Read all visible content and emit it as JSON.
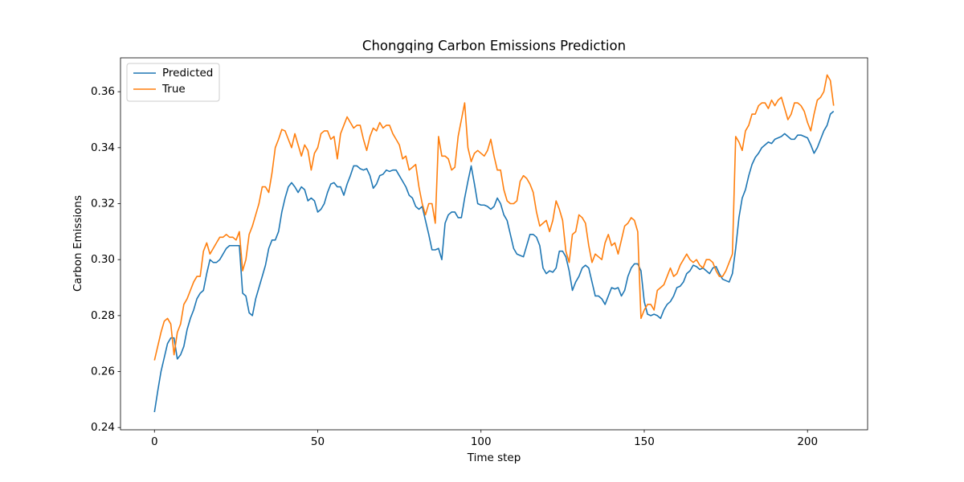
{
  "chart_data": {
    "type": "line",
    "title": "Chongqing Carbon Emissions Prediction",
    "xlabel": "Time step",
    "ylabel": "Carbon Emissions",
    "x": [
      0,
      1,
      2,
      3,
      4,
      5,
      6,
      7,
      8,
      9,
      10,
      11,
      12,
      13,
      14,
      15,
      16,
      17,
      18,
      19,
      20,
      21,
      22,
      23,
      24,
      25,
      26,
      27,
      28,
      29,
      30,
      31,
      32,
      33,
      34,
      35,
      36,
      37,
      38,
      39,
      40,
      41,
      42,
      43,
      44,
      45,
      46,
      47,
      48,
      49,
      50,
      51,
      52,
      53,
      54,
      55,
      56,
      57,
      58,
      59,
      60,
      61,
      62,
      63,
      64,
      65,
      66,
      67,
      68,
      69,
      70,
      71,
      72,
      73,
      74,
      75,
      76,
      77,
      78,
      79,
      80,
      81,
      82,
      83,
      84,
      85,
      86,
      87,
      88,
      89,
      90,
      91,
      92,
      93,
      94,
      95,
      96,
      97,
      98,
      99,
      100,
      101,
      102,
      103,
      104,
      105,
      106,
      107,
      108,
      109,
      110,
      111,
      112,
      113,
      114,
      115,
      116,
      117,
      118,
      119,
      120,
      121,
      122,
      123,
      124,
      125,
      126,
      127,
      128,
      129,
      130,
      131,
      132,
      133,
      134,
      135,
      136,
      137,
      138,
      139,
      140,
      141,
      142,
      143,
      144,
      145,
      146,
      147,
      148,
      149,
      150,
      151,
      152,
      153,
      154,
      155,
      156,
      157,
      158,
      159,
      160,
      161,
      162,
      163,
      164,
      165,
      166,
      167,
      168,
      169,
      170,
      171,
      172,
      173,
      174,
      175,
      176,
      177,
      178,
      179,
      180,
      181,
      182,
      183,
      184,
      185,
      186,
      187,
      188,
      189,
      190,
      191,
      192,
      193,
      194,
      195,
      196,
      197,
      198,
      199,
      200,
      201,
      202,
      203,
      204,
      205,
      206,
      207,
      208
    ],
    "series": [
      {
        "name": "Predicted",
        "color": "#1f77b4",
        "values": [
          0.2455,
          0.253,
          0.26,
          0.265,
          0.27,
          0.272,
          0.272,
          0.2645,
          0.266,
          0.269,
          0.275,
          0.279,
          0.282,
          0.286,
          0.288,
          0.289,
          0.295,
          0.3,
          0.299,
          0.299,
          0.3,
          0.302,
          0.304,
          0.305,
          0.305,
          0.305,
          0.305,
          0.288,
          0.287,
          0.281,
          0.28,
          0.286,
          0.29,
          0.294,
          0.298,
          0.304,
          0.307,
          0.307,
          0.31,
          0.317,
          0.322,
          0.326,
          0.3275,
          0.326,
          0.324,
          0.326,
          0.325,
          0.321,
          0.322,
          0.321,
          0.317,
          0.318,
          0.32,
          0.324,
          0.327,
          0.3275,
          0.326,
          0.326,
          0.323,
          0.327,
          0.33,
          0.3335,
          0.3335,
          0.3325,
          0.332,
          0.3325,
          0.33,
          0.3255,
          0.327,
          0.33,
          0.3305,
          0.332,
          0.3315,
          0.332,
          0.332,
          0.33,
          0.328,
          0.326,
          0.323,
          0.322,
          0.319,
          0.318,
          0.319,
          0.314,
          0.309,
          0.3035,
          0.3035,
          0.304,
          0.3,
          0.313,
          0.316,
          0.317,
          0.317,
          0.315,
          0.315,
          0.322,
          0.328,
          0.3335,
          0.327,
          0.32,
          0.3195,
          0.3195,
          0.319,
          0.318,
          0.319,
          0.322,
          0.32,
          0.316,
          0.314,
          0.309,
          0.304,
          0.302,
          0.3015,
          0.301,
          0.305,
          0.309,
          0.309,
          0.308,
          0.305,
          0.297,
          0.295,
          0.296,
          0.2955,
          0.297,
          0.303,
          0.303,
          0.301,
          0.296,
          0.289,
          0.292,
          0.294,
          0.297,
          0.298,
          0.297,
          0.292,
          0.287,
          0.287,
          0.286,
          0.284,
          0.287,
          0.29,
          0.2895,
          0.29,
          0.287,
          0.289,
          0.294,
          0.297,
          0.2985,
          0.2985,
          0.296,
          0.285,
          0.2805,
          0.28,
          0.2805,
          0.28,
          0.279,
          0.282,
          0.284,
          0.285,
          0.287,
          0.29,
          0.2905,
          0.292,
          0.295,
          0.296,
          0.298,
          0.2975,
          0.2965,
          0.297,
          0.296,
          0.295,
          0.297,
          0.2975,
          0.295,
          0.293,
          0.2925,
          0.292,
          0.295,
          0.304,
          0.315,
          0.322,
          0.325,
          0.33,
          0.334,
          0.3365,
          0.338,
          0.34,
          0.341,
          0.342,
          0.3415,
          0.343,
          0.3435,
          0.344,
          0.345,
          0.344,
          0.343,
          0.343,
          0.3445,
          0.3445,
          0.344,
          0.3435,
          0.341,
          0.338,
          0.34,
          0.343,
          0.346,
          0.348,
          0.352,
          0.353
        ]
      },
      {
        "name": "True",
        "color": "#ff7f0e",
        "values": [
          0.264,
          0.269,
          0.274,
          0.278,
          0.279,
          0.277,
          0.266,
          0.274,
          0.277,
          0.284,
          0.286,
          0.289,
          0.292,
          0.294,
          0.294,
          0.303,
          0.306,
          0.302,
          0.304,
          0.306,
          0.308,
          0.308,
          0.309,
          0.308,
          0.308,
          0.307,
          0.31,
          0.296,
          0.3,
          0.309,
          0.312,
          0.316,
          0.32,
          0.326,
          0.326,
          0.324,
          0.331,
          0.34,
          0.343,
          0.3465,
          0.346,
          0.343,
          0.34,
          0.345,
          0.341,
          0.337,
          0.341,
          0.339,
          0.332,
          0.338,
          0.34,
          0.345,
          0.346,
          0.346,
          0.343,
          0.344,
          0.336,
          0.345,
          0.348,
          0.351,
          0.349,
          0.347,
          0.348,
          0.348,
          0.343,
          0.339,
          0.344,
          0.347,
          0.346,
          0.349,
          0.347,
          0.348,
          0.348,
          0.345,
          0.343,
          0.341,
          0.336,
          0.337,
          0.332,
          0.333,
          0.334,
          0.326,
          0.32,
          0.316,
          0.32,
          0.32,
          0.313,
          0.344,
          0.337,
          0.337,
          0.336,
          0.332,
          0.333,
          0.344,
          0.35,
          0.356,
          0.34,
          0.335,
          0.338,
          0.339,
          0.338,
          0.337,
          0.339,
          0.343,
          0.337,
          0.332,
          0.332,
          0.325,
          0.321,
          0.32,
          0.32,
          0.321,
          0.328,
          0.33,
          0.329,
          0.327,
          0.324,
          0.317,
          0.312,
          0.313,
          0.314,
          0.31,
          0.314,
          0.321,
          0.318,
          0.314,
          0.303,
          0.299,
          0.309,
          0.31,
          0.316,
          0.315,
          0.313,
          0.305,
          0.299,
          0.302,
          0.301,
          0.3,
          0.306,
          0.309,
          0.305,
          0.306,
          0.302,
          0.307,
          0.312,
          0.313,
          0.315,
          0.314,
          0.31,
          0.279,
          0.282,
          0.284,
          0.284,
          0.282,
          0.289,
          0.29,
          0.291,
          0.294,
          0.297,
          0.294,
          0.295,
          0.298,
          0.3,
          0.302,
          0.3,
          0.299,
          0.3,
          0.298,
          0.297,
          0.3,
          0.3,
          0.299,
          0.296,
          0.294,
          0.294,
          0.296,
          0.299,
          0.302,
          0.344,
          0.342,
          0.339,
          0.346,
          0.348,
          0.352,
          0.352,
          0.355,
          0.356,
          0.356,
          0.354,
          0.357,
          0.355,
          0.357,
          0.358,
          0.354,
          0.35,
          0.352,
          0.356,
          0.356,
          0.355,
          0.353,
          0.349,
          0.346,
          0.352,
          0.357,
          0.358,
          0.36,
          0.366,
          0.364,
          0.355
        ]
      }
    ],
    "xlim": [
      -10.4,
      218.4
    ],
    "ylim": [
      0.2392,
      0.3721
    ],
    "xticks": [
      0,
      50,
      100,
      150,
      200
    ],
    "yticks": [
      0.24,
      0.26,
      0.28,
      {
        "value": 0.3,
        "label": "0.30"
      },
      0.32,
      0.34,
      0.36
    ],
    "legend": "upper left",
    "grid": false
  }
}
